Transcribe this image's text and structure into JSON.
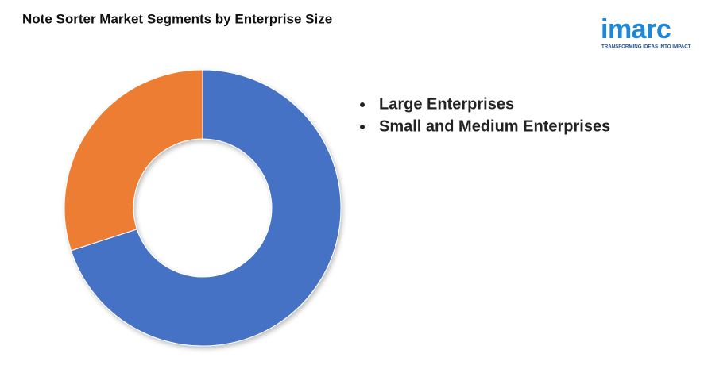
{
  "chart_data": {
    "type": "pie",
    "title": "Note Sorter Market Segments by Enterprise Size",
    "categories": [
      "Large Enterprises",
      "Small and Medium Enterprises"
    ],
    "values": [
      70,
      30
    ],
    "colors": [
      "#4472c4",
      "#ed7d31"
    ],
    "donut": true
  },
  "logo": {
    "name": "imarc",
    "tagline": "TRANSFORMING IDEAS INTO IMPACT"
  }
}
